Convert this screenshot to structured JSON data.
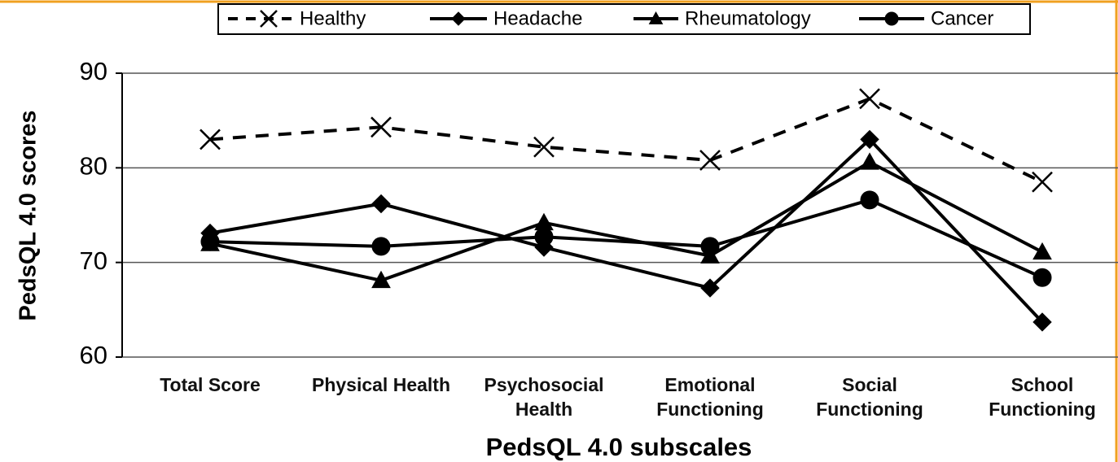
{
  "chart_data": {
    "type": "line",
    "xlabel": "PedsQL 4.0 subscales",
    "ylabel": "PedsQL 4.0 scores",
    "categories": [
      "Total Score",
      "Physical Health",
      "Psychosocial Health",
      "Emotional Functioning",
      "Social Functioning",
      "School Functioning"
    ],
    "series": [
      {
        "name": "Healthy",
        "color": "#000000",
        "marker": "x",
        "dashed": true,
        "values": [
          83.0,
          84.3,
          82.2,
          80.8,
          87.3,
          78.5
        ]
      },
      {
        "name": "Headache",
        "color": "#000000",
        "marker": "diamond",
        "dashed": false,
        "values": [
          73.1,
          76.2,
          71.6,
          67.3,
          83.0,
          63.7
        ]
      },
      {
        "name": "Rheumatology",
        "color": "#000000",
        "marker": "triangle",
        "dashed": false,
        "values": [
          72.0,
          68.1,
          74.2,
          70.7,
          80.6,
          71.1
        ]
      },
      {
        "name": "Cancer",
        "color": "#000000",
        "marker": "circle",
        "dashed": false,
        "values": [
          72.2,
          71.7,
          72.7,
          71.7,
          76.6,
          68.4
        ]
      }
    ],
    "ylim": [
      60,
      90
    ],
    "yticks": [
      60,
      70,
      80,
      90
    ],
    "grid": true,
    "legend": "top"
  }
}
